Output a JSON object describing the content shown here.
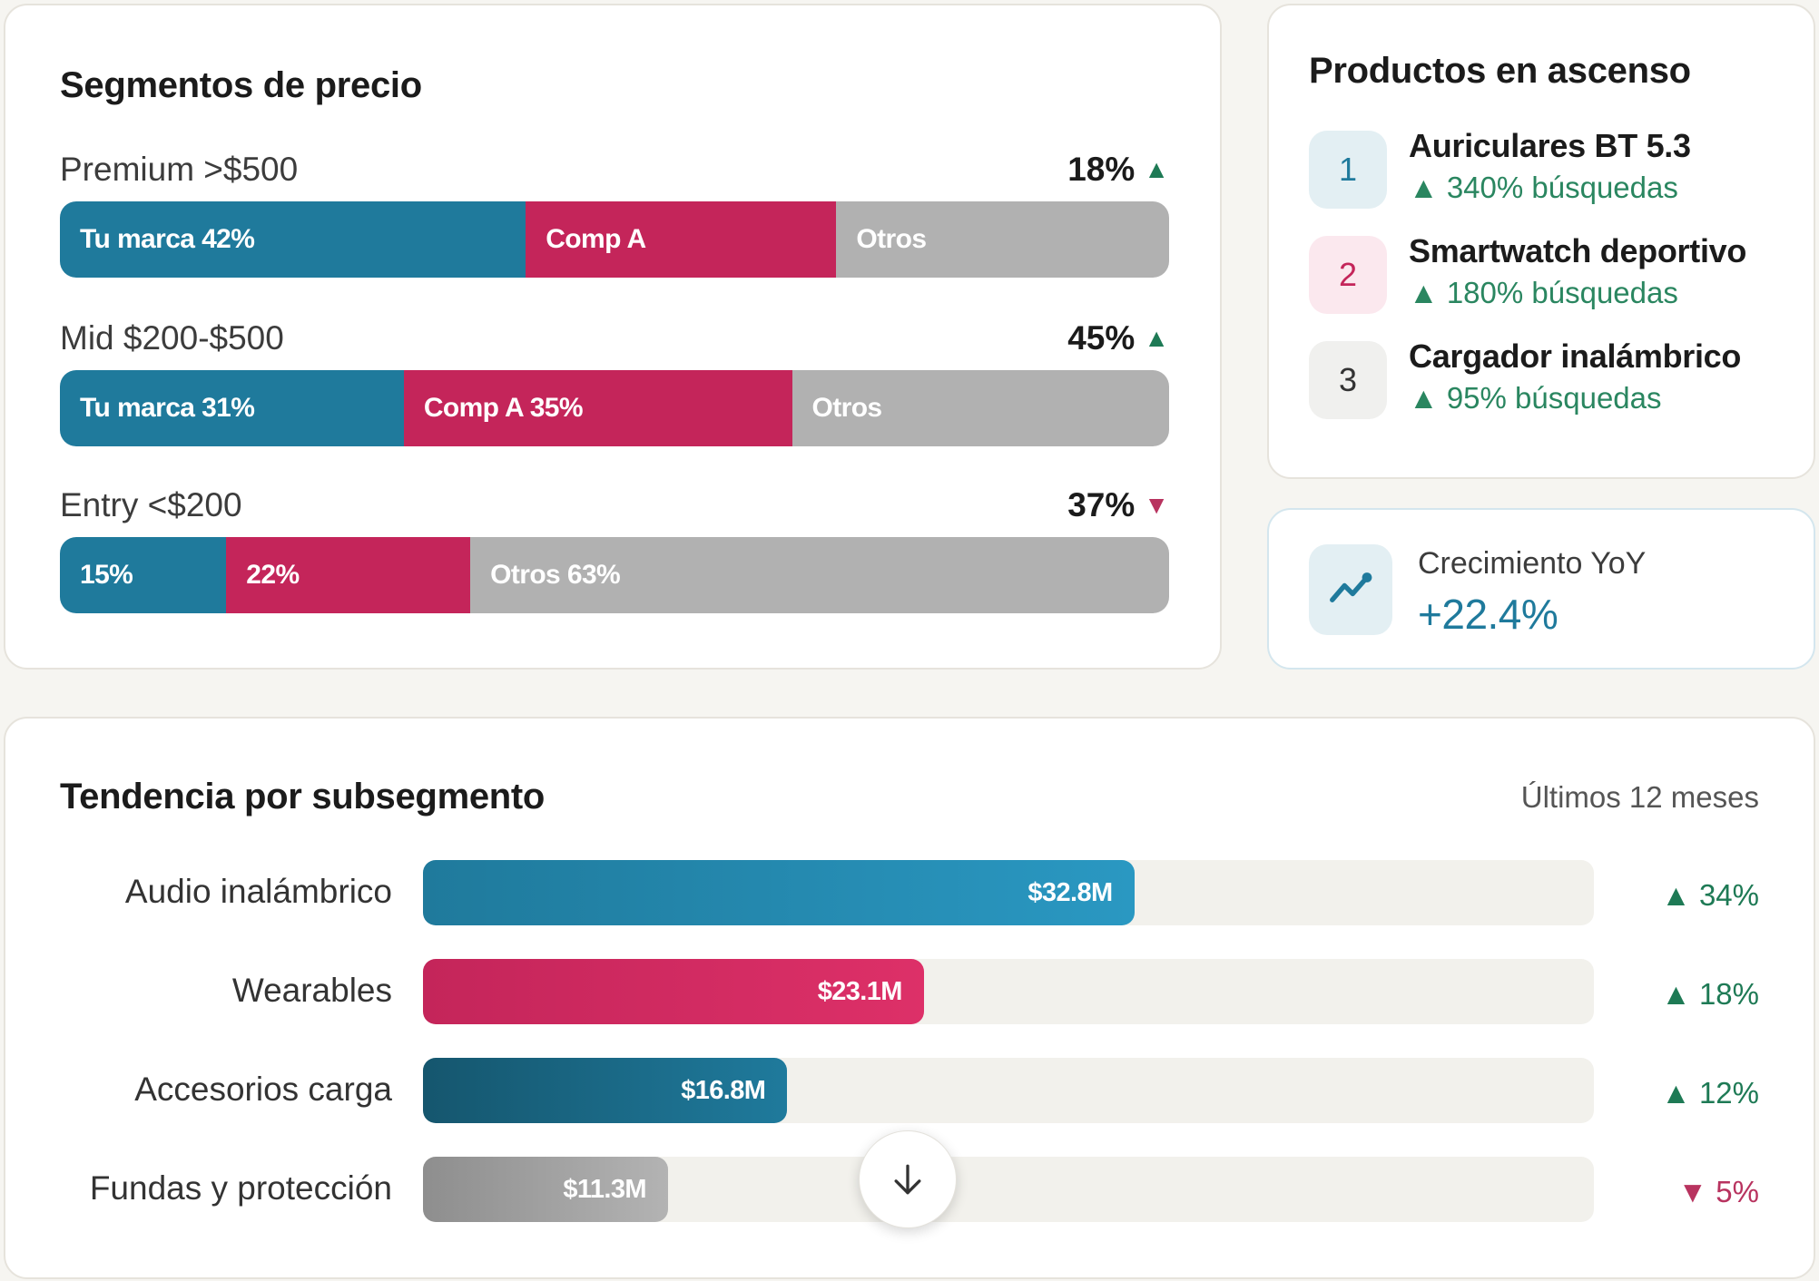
{
  "colors": {
    "brand": "#1f7a9c",
    "comp_a": "#c4255a",
    "others": "#b1b1b1",
    "up": "#1e7a55",
    "down": "#b8335f"
  },
  "segments_card": {
    "title": "Segmentos de precio",
    "rows": [
      {
        "label": "Premium >$500",
        "share": "18%",
        "trend": "up",
        "trend_icon": "▲",
        "parts": [
          {
            "label": "Tu marca 42%",
            "fraction": 0.42,
            "color": "#1f7a9c"
          },
          {
            "label": "Comp A",
            "fraction": 0.28,
            "color": "#c4255a"
          },
          {
            "label": "Otros",
            "fraction": 0.3,
            "color": "#b1b1b1"
          }
        ]
      },
      {
        "label": "Mid $200-$500",
        "share": "45%",
        "trend": "up",
        "trend_icon": "▲",
        "parts": [
          {
            "label": "Tu marca 31%",
            "fraction": 0.31,
            "color": "#1f7a9c"
          },
          {
            "label": "Comp A 35%",
            "fraction": 0.35,
            "color": "#c4255a"
          },
          {
            "label": "Otros",
            "fraction": 0.34,
            "color": "#b1b1b1"
          }
        ]
      },
      {
        "label": "Entry <$200",
        "share": "37%",
        "trend": "down",
        "trend_icon": "▼",
        "parts": [
          {
            "label": "15%",
            "fraction": 0.15,
            "color": "#1f7a9c"
          },
          {
            "label": "22%",
            "fraction": 0.22,
            "color": "#c4255a"
          },
          {
            "label": "Otros 63%",
            "fraction": 0.63,
            "color": "#b1b1b1"
          }
        ]
      }
    ]
  },
  "rising_card": {
    "title": "Productos en ascenso",
    "items": [
      {
        "rank": "1",
        "name": "Auriculares BT 5.3",
        "delta": "▲ 340% búsquedas",
        "rank_bg": "#e3eff3",
        "rank_color": "#1f7a9c"
      },
      {
        "rank": "2",
        "name": "Smartwatch deportivo",
        "delta": "▲ 180% búsquedas",
        "rank_bg": "#fbe8ee",
        "rank_color": "#c4255a"
      },
      {
        "rank": "3",
        "name": "Cargador inalámbrico",
        "delta": "▲ 95% búsquedas",
        "rank_bg": "#f0f0ee",
        "rank_color": "#333333"
      }
    ]
  },
  "yoy_card": {
    "icon": "trending-up-icon",
    "label": "Crecimiento YoY",
    "value": "+22.4%"
  },
  "trend_card": {
    "title": "Tendencia por subsegmento",
    "period": "Últimos 12 meses",
    "rows": [
      {
        "label": "Audio inalámbrico",
        "value_label": "$32.8M",
        "value": 32.8,
        "delta": "▲ 34%",
        "trend": "up",
        "gradient": [
          "#1f7a9c",
          "#2a98c2"
        ]
      },
      {
        "label": "Wearables",
        "value_label": "$23.1M",
        "value": 23.1,
        "delta": "▲ 18%",
        "trend": "up",
        "gradient": [
          "#c4255a",
          "#dd3068"
        ]
      },
      {
        "label": "Accesorios carga",
        "value_label": "$16.8M",
        "value": 16.8,
        "delta": "▲ 12%",
        "trend": "up",
        "gradient": [
          "#15566e",
          "#1f7a9c"
        ]
      },
      {
        "label": "Fundas y protección",
        "value_label": "$11.3M",
        "value": 11.3,
        "delta": "▼ 5%",
        "trend": "down",
        "gradient": [
          "#8e8e8e",
          "#b3b3b3"
        ]
      }
    ],
    "scale_max": 54
  },
  "scroll_button": {
    "icon": "arrow-down-icon"
  }
}
